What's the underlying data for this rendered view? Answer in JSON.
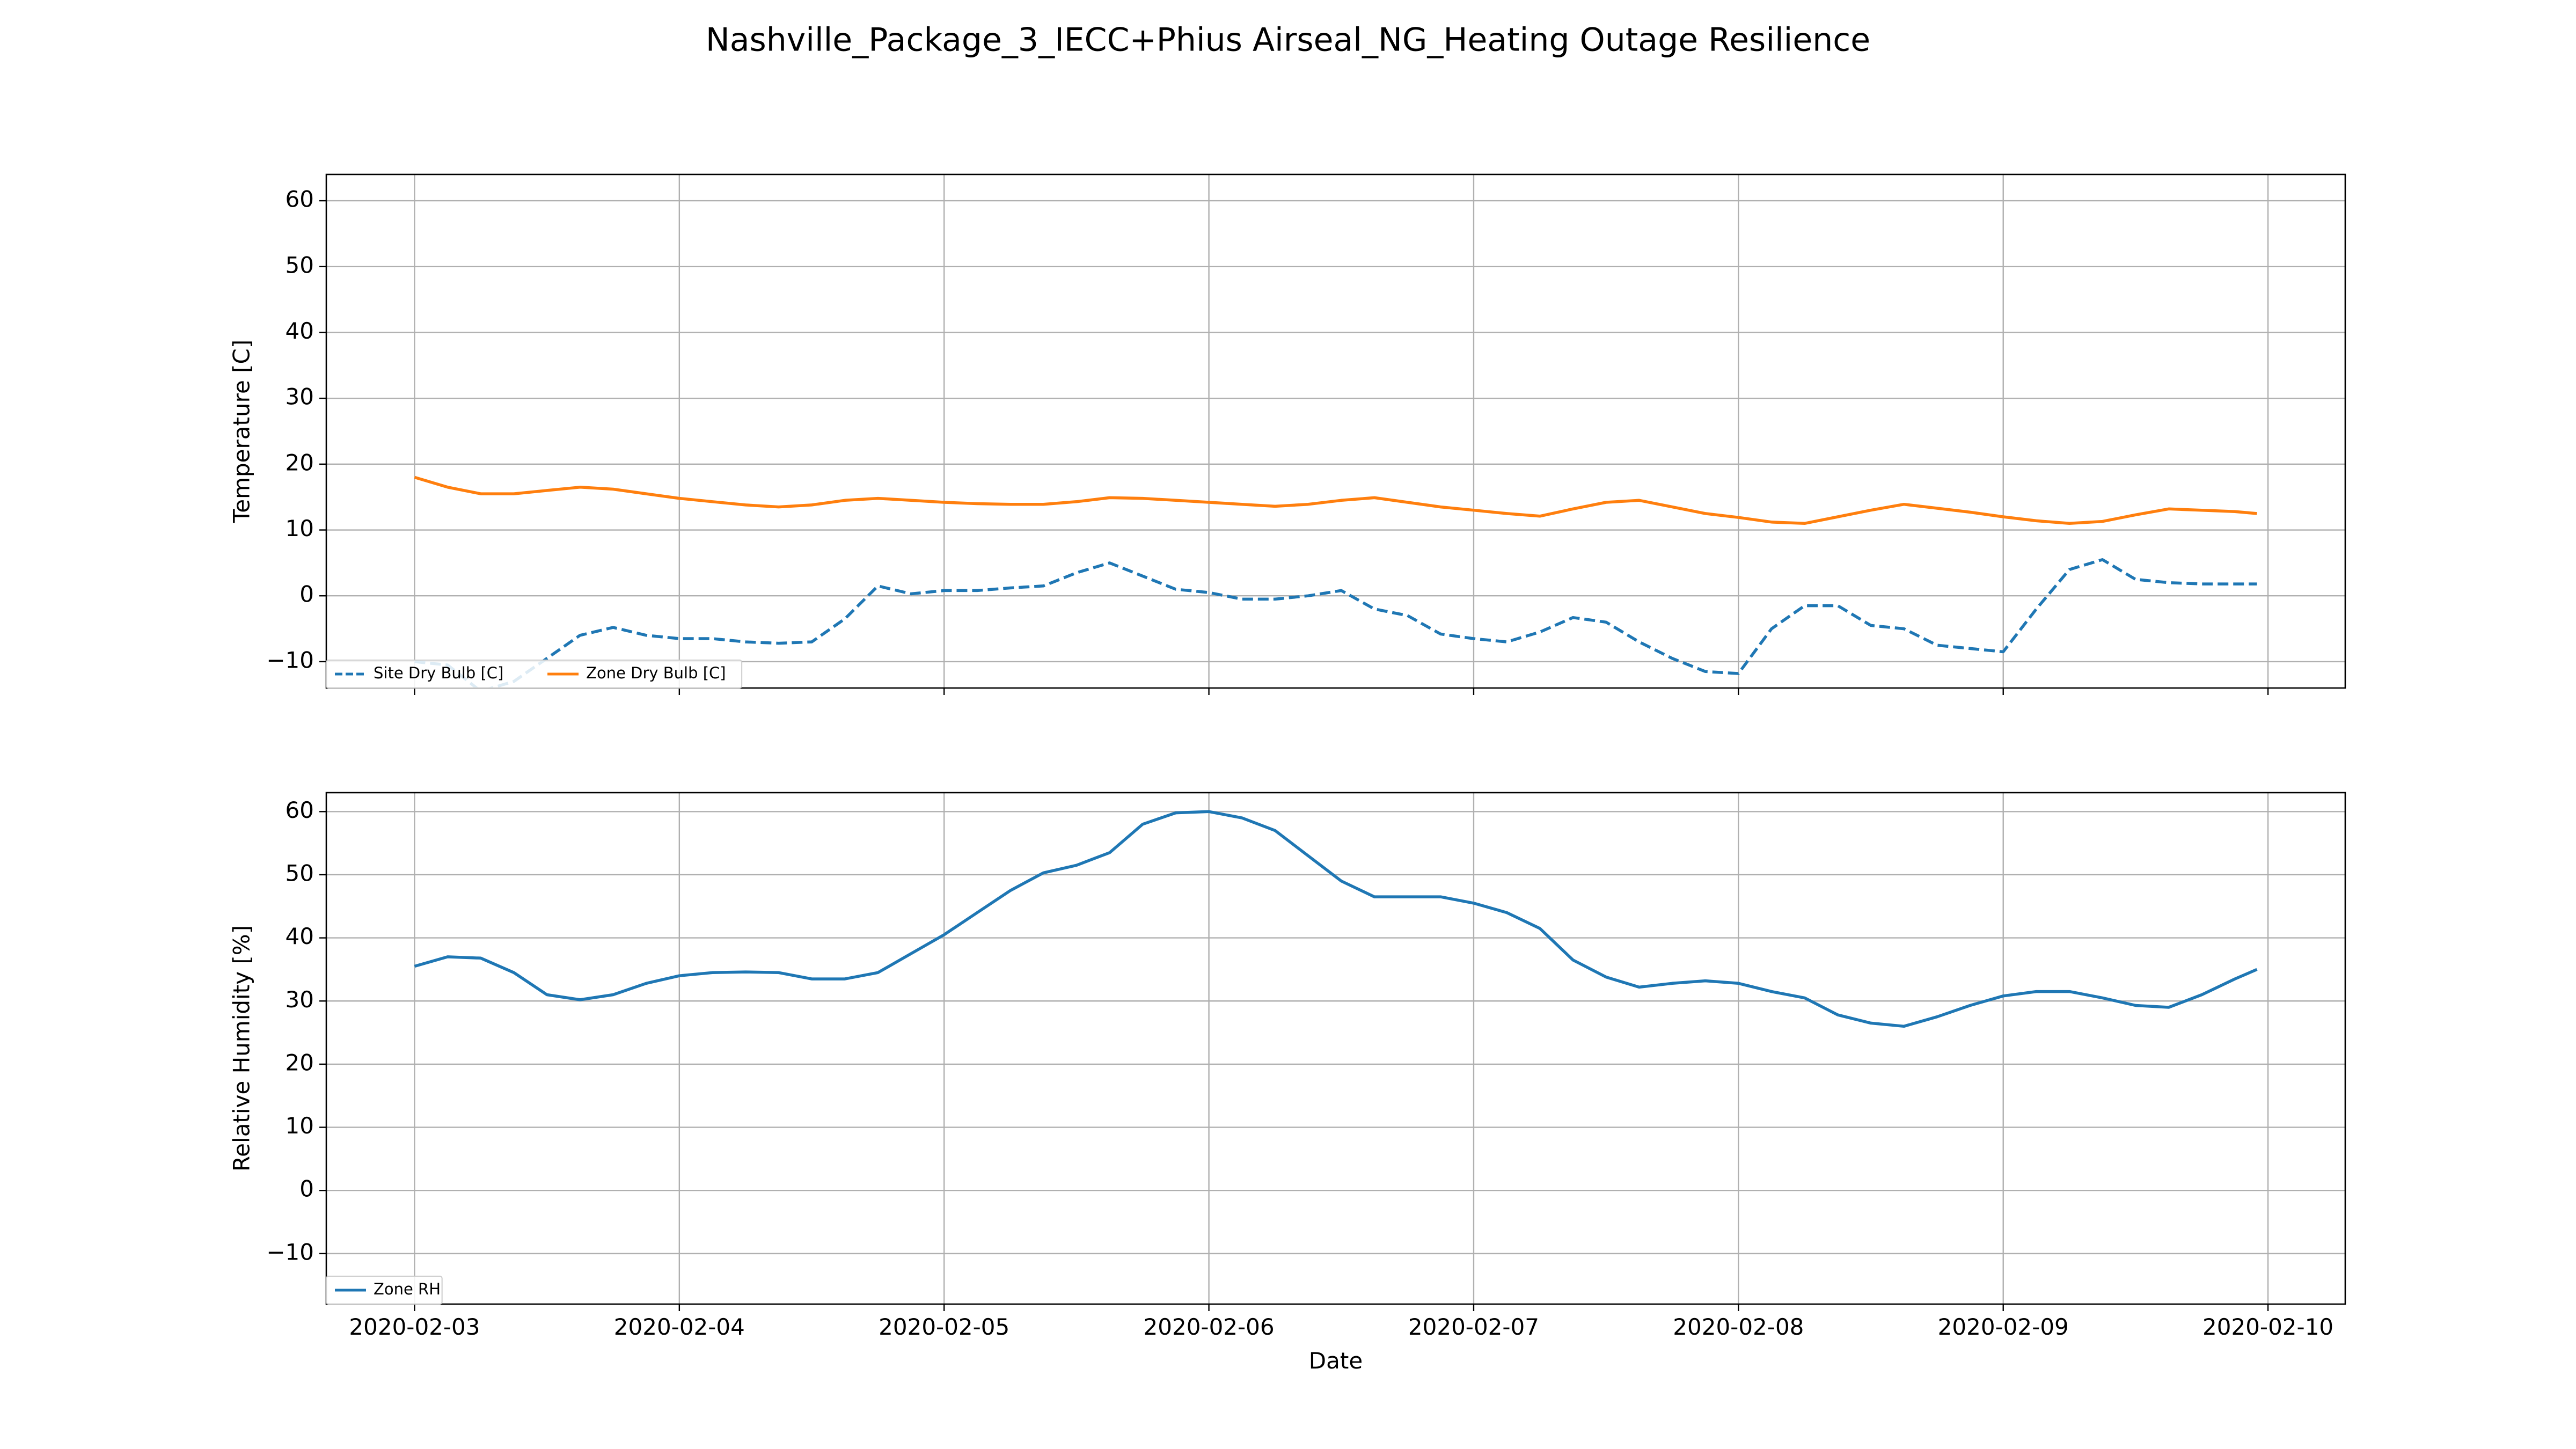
{
  "figure": {
    "title": "Nashville_Package_3_IECC+Phius Airseal_NG_Heating Outage Resilience"
  },
  "chart_data": [
    {
      "type": "line",
      "title": "",
      "xlabel": "",
      "ylabel": "Temperature [C]",
      "x_type": "date",
      "xlim": [
        "2020-02-02T16:00",
        "2020-02-10T07:00"
      ],
      "ylim": [
        -14,
        64
      ],
      "yticks": [
        -10,
        0,
        10,
        20,
        30,
        40,
        50,
        60
      ],
      "xticks": [
        "2020-02-03",
        "2020-02-04",
        "2020-02-05",
        "2020-02-06",
        "2020-02-07",
        "2020-02-08",
        "2020-02-09",
        "2020-02-10"
      ],
      "show_xtick_labels": false,
      "grid": true,
      "legend_position": "lower-left",
      "legend_columns": 2,
      "series": [
        {
          "name": "Site Dry Bulb [C]",
          "color": "#1f77b4",
          "dash": "dashed",
          "x": [
            "2020-02-03T00:00",
            "2020-02-03T03:00",
            "2020-02-03T06:00",
            "2020-02-03T09:00",
            "2020-02-03T12:00",
            "2020-02-03T15:00",
            "2020-02-03T18:00",
            "2020-02-03T21:00",
            "2020-02-04T00:00",
            "2020-02-04T03:00",
            "2020-02-04T06:00",
            "2020-02-04T09:00",
            "2020-02-04T12:00",
            "2020-02-04T15:00",
            "2020-02-04T18:00",
            "2020-02-04T21:00",
            "2020-02-05T00:00",
            "2020-02-05T03:00",
            "2020-02-05T06:00",
            "2020-02-05T09:00",
            "2020-02-05T12:00",
            "2020-02-05T15:00",
            "2020-02-05T18:00",
            "2020-02-05T21:00",
            "2020-02-06T00:00",
            "2020-02-06T03:00",
            "2020-02-06T06:00",
            "2020-02-06T09:00",
            "2020-02-06T12:00",
            "2020-02-06T15:00",
            "2020-02-06T18:00",
            "2020-02-06T21:00",
            "2020-02-07T00:00",
            "2020-02-07T03:00",
            "2020-02-07T06:00",
            "2020-02-07T09:00",
            "2020-02-07T12:00",
            "2020-02-07T15:00",
            "2020-02-07T18:00",
            "2020-02-07T21:00",
            "2020-02-08T00:00",
            "2020-02-08T03:00",
            "2020-02-08T06:00",
            "2020-02-08T09:00",
            "2020-02-08T12:00",
            "2020-02-08T15:00",
            "2020-02-08T18:00",
            "2020-02-08T21:00",
            "2020-02-09T00:00",
            "2020-02-09T03:00",
            "2020-02-09T06:00",
            "2020-02-09T09:00",
            "2020-02-09T12:00",
            "2020-02-09T15:00",
            "2020-02-09T18:00",
            "2020-02-09T21:00",
            "2020-02-09T23:00"
          ],
          "y": [
            -10,
            -10.5,
            -14.5,
            -13,
            -9.5,
            -6,
            -4.8,
            -6,
            -6.5,
            -6.5,
            -7,
            -7.2,
            -7,
            -3.5,
            1.5,
            0.3,
            0.8,
            0.8,
            1.2,
            1.5,
            3.5,
            5,
            3,
            1,
            0.5,
            -0.5,
            -0.5,
            0,
            0.8,
            -2,
            -3,
            -5.8,
            -6.5,
            -7,
            -5.5,
            -3.3,
            -4,
            -7,
            -9.5,
            -11.5,
            -11.8,
            -5,
            -1.5,
            -1.5,
            -4.5,
            -5,
            -7.5,
            -8,
            -8.5,
            -2,
            4,
            5.5,
            2.5,
            2,
            1.8,
            1.8,
            1.8
          ]
        },
        {
          "name": "Zone Dry Bulb [C]",
          "color": "#ff7f0e",
          "dash": "solid",
          "x": [
            "2020-02-03T00:00",
            "2020-02-03T03:00",
            "2020-02-03T06:00",
            "2020-02-03T09:00",
            "2020-02-03T12:00",
            "2020-02-03T15:00",
            "2020-02-03T18:00",
            "2020-02-03T21:00",
            "2020-02-04T00:00",
            "2020-02-04T03:00",
            "2020-02-04T06:00",
            "2020-02-04T09:00",
            "2020-02-04T12:00",
            "2020-02-04T15:00",
            "2020-02-04T18:00",
            "2020-02-04T21:00",
            "2020-02-05T00:00",
            "2020-02-05T03:00",
            "2020-02-05T06:00",
            "2020-02-05T09:00",
            "2020-02-05T12:00",
            "2020-02-05T15:00",
            "2020-02-05T18:00",
            "2020-02-05T21:00",
            "2020-02-06T00:00",
            "2020-02-06T03:00",
            "2020-02-06T06:00",
            "2020-02-06T09:00",
            "2020-02-06T12:00",
            "2020-02-06T15:00",
            "2020-02-06T18:00",
            "2020-02-06T21:00",
            "2020-02-07T00:00",
            "2020-02-07T03:00",
            "2020-02-07T06:00",
            "2020-02-07T09:00",
            "2020-02-07T12:00",
            "2020-02-07T15:00",
            "2020-02-07T18:00",
            "2020-02-07T21:00",
            "2020-02-08T00:00",
            "2020-02-08T03:00",
            "2020-02-08T06:00",
            "2020-02-08T09:00",
            "2020-02-08T12:00",
            "2020-02-08T15:00",
            "2020-02-08T18:00",
            "2020-02-08T21:00",
            "2020-02-09T00:00",
            "2020-02-09T03:00",
            "2020-02-09T06:00",
            "2020-02-09T09:00",
            "2020-02-09T12:00",
            "2020-02-09T15:00",
            "2020-02-09T18:00",
            "2020-02-09T21:00",
            "2020-02-09T23:00"
          ],
          "y": [
            18,
            16.5,
            15.5,
            15.5,
            16,
            16.5,
            16.2,
            15.5,
            14.8,
            14.3,
            13.8,
            13.5,
            13.8,
            14.5,
            14.8,
            14.5,
            14.2,
            14,
            13.9,
            13.9,
            14.3,
            14.9,
            14.8,
            14.5,
            14.2,
            13.9,
            13.6,
            13.9,
            14.5,
            14.9,
            14.2,
            13.5,
            13,
            12.5,
            12.1,
            13.2,
            14.2,
            14.5,
            13.5,
            12.5,
            11.9,
            11.2,
            11,
            12,
            13,
            13.9,
            13.3,
            12.7,
            12,
            11.4,
            11,
            11.3,
            12.3,
            13.2,
            13,
            12.8,
            12.5
          ]
        }
      ]
    },
    {
      "type": "line",
      "title": "",
      "xlabel": "Date",
      "ylabel": "Relative Humidity [%]",
      "x_type": "date",
      "xlim": [
        "2020-02-02T16:00",
        "2020-02-10T07:00"
      ],
      "ylim": [
        -18,
        63
      ],
      "yticks": [
        -10,
        0,
        10,
        20,
        30,
        40,
        50,
        60
      ],
      "xticks": [
        "2020-02-03",
        "2020-02-04",
        "2020-02-05",
        "2020-02-06",
        "2020-02-07",
        "2020-02-08",
        "2020-02-09",
        "2020-02-10"
      ],
      "show_xtick_labels": true,
      "grid": true,
      "legend_position": "lower-left",
      "legend_columns": 1,
      "series": [
        {
          "name": "Zone RH",
          "color": "#1f77b4",
          "dash": "solid",
          "x": [
            "2020-02-03T00:00",
            "2020-02-03T03:00",
            "2020-02-03T06:00",
            "2020-02-03T09:00",
            "2020-02-03T12:00",
            "2020-02-03T15:00",
            "2020-02-03T18:00",
            "2020-02-03T21:00",
            "2020-02-04T00:00",
            "2020-02-04T03:00",
            "2020-02-04T06:00",
            "2020-02-04T09:00",
            "2020-02-04T12:00",
            "2020-02-04T15:00",
            "2020-02-04T18:00",
            "2020-02-04T21:00",
            "2020-02-05T00:00",
            "2020-02-05T03:00",
            "2020-02-05T06:00",
            "2020-02-05T09:00",
            "2020-02-05T12:00",
            "2020-02-05T15:00",
            "2020-02-05T18:00",
            "2020-02-05T21:00",
            "2020-02-06T00:00",
            "2020-02-06T03:00",
            "2020-02-06T06:00",
            "2020-02-06T09:00",
            "2020-02-06T12:00",
            "2020-02-06T15:00",
            "2020-02-06T18:00",
            "2020-02-06T21:00",
            "2020-02-07T00:00",
            "2020-02-07T03:00",
            "2020-02-07T06:00",
            "2020-02-07T09:00",
            "2020-02-07T12:00",
            "2020-02-07T15:00",
            "2020-02-07T18:00",
            "2020-02-07T21:00",
            "2020-02-08T00:00",
            "2020-02-08T03:00",
            "2020-02-08T06:00",
            "2020-02-08T09:00",
            "2020-02-08T12:00",
            "2020-02-08T15:00",
            "2020-02-08T18:00",
            "2020-02-08T21:00",
            "2020-02-09T00:00",
            "2020-02-09T03:00",
            "2020-02-09T06:00",
            "2020-02-09T09:00",
            "2020-02-09T12:00",
            "2020-02-09T15:00",
            "2020-02-09T18:00",
            "2020-02-09T21:00",
            "2020-02-09T23:00"
          ],
          "y": [
            35.5,
            37,
            36.8,
            34.5,
            31,
            30.2,
            31,
            32.8,
            34,
            34.5,
            34.6,
            34.5,
            33.5,
            33.5,
            34.5,
            37.5,
            40.5,
            44,
            47.5,
            50.3,
            51.5,
            53.5,
            58,
            59.8,
            60,
            59,
            57,
            53,
            49,
            46.5,
            46.5,
            46.5,
            45.5,
            44,
            41.5,
            36.5,
            33.8,
            32.2,
            32.8,
            33.2,
            32.8,
            31.5,
            30.5,
            27.8,
            26.5,
            26,
            27.5,
            29.3,
            30.8,
            31.5,
            31.5,
            30.5,
            29.3,
            29,
            31,
            33.5,
            35
          ]
        }
      ]
    }
  ]
}
